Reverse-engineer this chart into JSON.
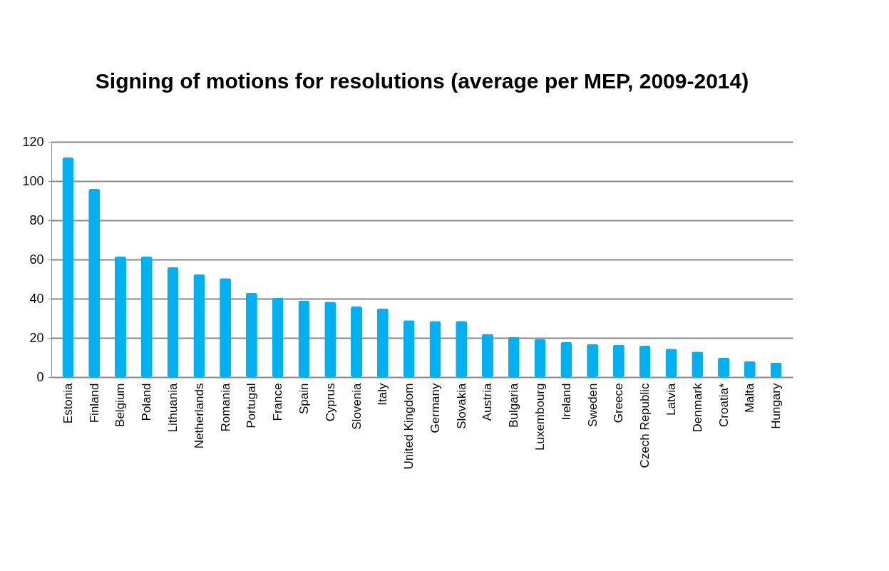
{
  "chart_data": {
    "type": "bar",
    "title": "Signing of motions for resolutions (average per MEP, 2009-2014)",
    "categories": [
      "Estonia",
      "Finland",
      "Belgium",
      "Poland",
      "Lithuania",
      "Netherlands",
      "Romania",
      "Portugal",
      "France",
      "Spain",
      "Cyprus",
      "Slovenia",
      "Italy",
      "United Kingdom",
      "Germany",
      "Slovakia",
      "Austria",
      "Bulgaria",
      "Luxembourg",
      "Ireland",
      "Sweden",
      "Greece",
      "Czech Republic",
      "Latvia",
      "Denmark",
      "Croatia*",
      "Malta",
      "Hungary"
    ],
    "values": [
      112,
      96,
      61.5,
      61.5,
      56,
      52.5,
      50.5,
      43,
      40.5,
      39,
      38.5,
      36,
      35,
      29,
      28.6,
      28.6,
      22,
      20.5,
      19.5,
      17.8,
      16.8,
      16.5,
      16,
      14.5,
      13,
      10,
      8.2,
      7.5
    ],
    "color": "#00b0f0",
    "ylim": [
      0,
      120
    ],
    "yticks": [
      0,
      20,
      40,
      60,
      80,
      100,
      120
    ],
    "grid": "y"
  }
}
